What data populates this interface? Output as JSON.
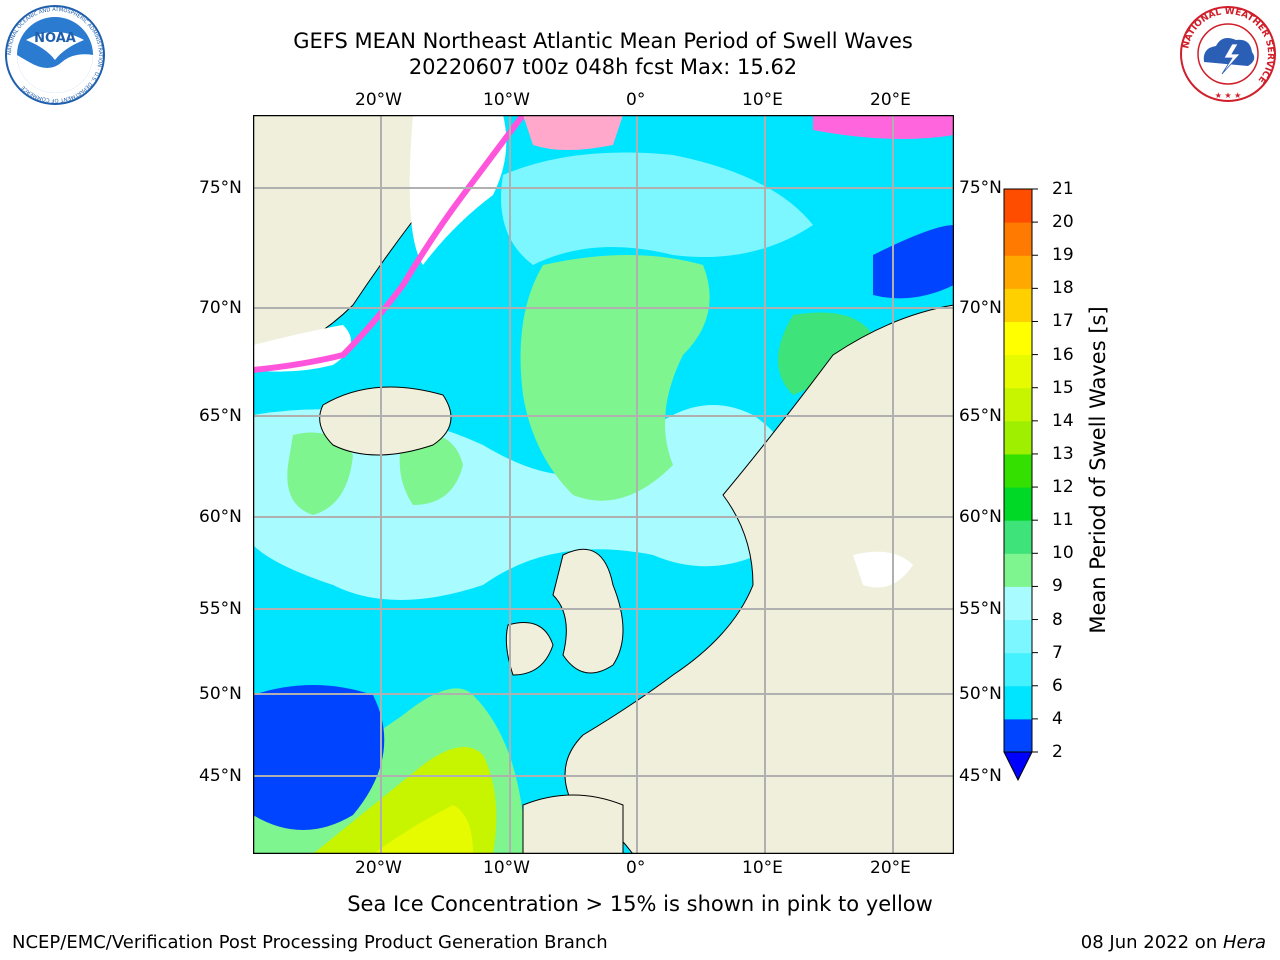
{
  "header": {
    "title_line1": "GEFS MEAN Northeast Atlantic Mean Period of Swell Waves",
    "title_line2": "20220607 t00z 048h fcst   Max: 15.62"
  },
  "logos": {
    "left": "NOAA",
    "left_ring": "NATIONAL OCEANIC AND ATMOSPHERIC ADMINISTRATION · U.S. DEPARTMENT OF COMMERCE",
    "right_ring": "NATIONAL WEATHER SERVICE"
  },
  "map": {
    "lon_labels_top": [
      "20°W",
      "10°W",
      "0°",
      "10°E",
      "20°E"
    ],
    "lon_labels_bottom": [
      "20°W",
      "10°W",
      "0°",
      "10°E",
      "20°E"
    ],
    "lat_labels_left": [
      "75°N",
      "70°N",
      "65°N",
      "60°N",
      "55°N",
      "50°N",
      "45°N"
    ],
    "lat_labels_right": [
      "75°N",
      "70°N",
      "65°N",
      "60°N",
      "55°N",
      "50°N",
      "45°N"
    ]
  },
  "colorbar": {
    "label": "Mean Period of Swell Waves [s]",
    "ticks": [
      "2",
      "4",
      "6",
      "7",
      "8",
      "9",
      "10",
      "11",
      "12",
      "13",
      "14",
      "15",
      "16",
      "17",
      "18",
      "19",
      "20",
      "21"
    ],
    "colors": [
      "#0044ff",
      "#00e5ff",
      "#44f2ff",
      "#7df7ff",
      "#a8fbff",
      "#7ef58e",
      "#3ee37a",
      "#00d926",
      "#33e000",
      "#9ef000",
      "#c7f500",
      "#e6fa00",
      "#ffff00",
      "#ffd000",
      "#ffa800",
      "#ff7a00",
      "#ff4d00",
      "#ff1a00",
      "#ff0000"
    ]
  },
  "note": "Sea Ice Concentration > 15% is shown in pink to yellow",
  "footer": {
    "left": "NCEP/EMC/Verification Post Processing Product Generation Branch",
    "right_prefix": "08 Jun 2022 on ",
    "right_host": "Hera"
  }
}
